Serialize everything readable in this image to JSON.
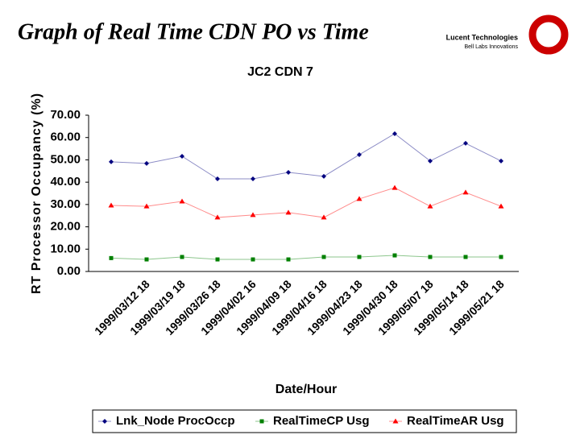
{
  "header": {
    "title": "Graph of Real Time CDN PO vs Time",
    "company": "Lucent Technologies",
    "tagline": "Bell Labs Innovations"
  },
  "chart_data": {
    "type": "line",
    "title": "JC2 CDN 7",
    "x_label": "Date/Hour",
    "y_label": "RT Processor Occupancy (%)",
    "categories": [
      null,
      "1999/03/12  18",
      "1999/03/19  18",
      "1999/03/26  18",
      "1999/04/02  16",
      "1999/04/09  18",
      "1999/04/16  18",
      "1999/04/23  18",
      "1999/04/30  18",
      "1999/05/07  18",
      "1999/05/14  18",
      "1999/05/21  18"
    ],
    "series": [
      {
        "name": "Lnk_Node ProcOccp",
        "color": "#000080",
        "marker": "diamond",
        "values": [
          49.1,
          48.4,
          51.6,
          41.5,
          41.5,
          44.4,
          42.6,
          52.3,
          61.7,
          49.5,
          57.4,
          49.5
        ]
      },
      {
        "name": "RealTimeCP Usg",
        "color": "#008000",
        "marker": "square",
        "values": [
          6.0,
          5.4,
          6.5,
          5.4,
          5.4,
          5.4,
          6.5,
          6.5,
          7.2,
          6.5,
          6.5,
          6.5
        ]
      },
      {
        "name": "RealTimeAR Usg",
        "color": "#ff0000",
        "marker": "triangle",
        "values": [
          29.6,
          29.2,
          31.4,
          24.2,
          25.3,
          26.4,
          24.2,
          32.5,
          37.5,
          29.2,
          35.4,
          29.2
        ]
      }
    ],
    "ylim": [
      0,
      70
    ],
    "yticks": [
      {
        "value": 0,
        "label": "0.00"
      },
      {
        "value": 10,
        "label": "10.00"
      },
      {
        "value": 20,
        "label": "20.00"
      },
      {
        "value": 30,
        "label": "30.00"
      },
      {
        "value": 40,
        "label": "40.00"
      },
      {
        "value": 50,
        "label": "50.00"
      },
      {
        "value": 60,
        "label": "60.00"
      },
      {
        "value": 70,
        "label": "70.00"
      }
    ],
    "legend": "bottom"
  }
}
